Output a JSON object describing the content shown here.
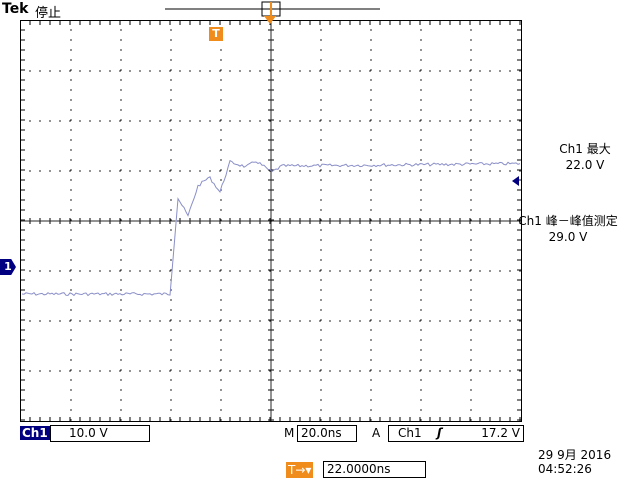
{
  "header": {
    "brand": "Tek",
    "run_state": "停止"
  },
  "markers": {
    "trigger_label": "T",
    "channel_marker": "1"
  },
  "measurements": [
    {
      "title": "Ch1 最大",
      "value": "22.0 V"
    },
    {
      "title": "Ch1 峰－峰值测定",
      "value": "29.0 V"
    }
  ],
  "status_bar": {
    "channel": "Ch1",
    "volts_per_div": "10.0 V",
    "timebase_prefix": "M",
    "timebase": "20.0ns",
    "trigger_mode": "A",
    "trigger_source": "Ch1",
    "trigger_slope": "ʃ",
    "trigger_level": "17.2 V",
    "trigger_offset_label": "T→▾",
    "trigger_offset": "22.0000ns",
    "date": "29 9月  2016",
    "time": "04:52:26"
  },
  "colors": {
    "waveform": "#8a8fc8",
    "accent_orange": "#f08c1c",
    "channel_blue": "#000080",
    "grid": "#000000"
  }
}
